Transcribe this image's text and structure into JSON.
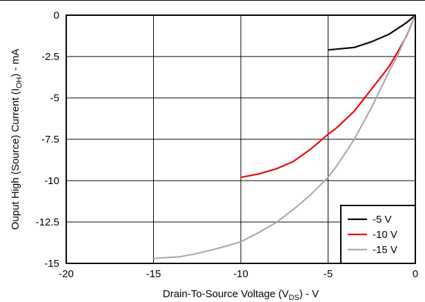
{
  "chart_data": {
    "type": "line",
    "title": "",
    "xlabel": {
      "main": "Drain-To-Source Voltage (V",
      "sub": "DS",
      "tail": ") - V"
    },
    "ylabel": {
      "main": "Ouput High (Source) Current (I",
      "sub": "OH",
      "tail": ") - mA"
    },
    "xlim": [
      -20,
      0
    ],
    "ylim": [
      -15,
      0
    ],
    "xticks": [
      -20,
      -15,
      -10,
      -5,
      0
    ],
    "xtick_labels": [
      "-20",
      "-15",
      "-10",
      "-5",
      "0"
    ],
    "yticks": [
      0,
      -2.5,
      -5,
      -7.5,
      -10,
      -12.5,
      -15
    ],
    "ytick_labels": [
      "0",
      "-2.5",
      "-5",
      "-7.5",
      "-10",
      "-12.5",
      "-15"
    ],
    "grid": true,
    "legend_position": "bottom-right",
    "series": [
      {
        "name": "-5 V",
        "color": "#000000",
        "points": [
          [
            -5,
            -2.1
          ],
          [
            -4.5,
            -2.05
          ],
          [
            -3.5,
            -1.95
          ],
          [
            -2.5,
            -1.6
          ],
          [
            -1.5,
            -1.15
          ],
          [
            -0.5,
            -0.45
          ],
          [
            0,
            0
          ]
        ]
      },
      {
        "name": "-10 V",
        "color": "#ee0000",
        "points": [
          [
            -10,
            -9.8
          ],
          [
            -9,
            -9.6
          ],
          [
            -8,
            -9.3
          ],
          [
            -7,
            -8.85
          ],
          [
            -6,
            -8.1
          ],
          [
            -5,
            -7.2
          ],
          [
            -4.5,
            -6.8
          ],
          [
            -3.5,
            -5.8
          ],
          [
            -2.5,
            -4.45
          ],
          [
            -1.5,
            -3.1
          ],
          [
            -1,
            -2.2
          ],
          [
            -0.5,
            -1.25
          ],
          [
            0,
            0
          ]
        ]
      },
      {
        "name": "-15 V",
        "color": "#aaaaaa",
        "points": [
          [
            -15,
            -14.7
          ],
          [
            -13.5,
            -14.6
          ],
          [
            -12.5,
            -14.4
          ],
          [
            -11.5,
            -14.15
          ],
          [
            -10,
            -13.7
          ],
          [
            -9,
            -13.15
          ],
          [
            -8,
            -12.55
          ],
          [
            -7,
            -11.75
          ],
          [
            -6,
            -10.85
          ],
          [
            -5,
            -9.8
          ],
          [
            -4.5,
            -9.1
          ],
          [
            -3.5,
            -7.5
          ],
          [
            -2.5,
            -5.55
          ],
          [
            -1.5,
            -3.4
          ],
          [
            -1,
            -2.4
          ],
          [
            -0.5,
            -1.2
          ],
          [
            0,
            0
          ]
        ]
      }
    ]
  }
}
